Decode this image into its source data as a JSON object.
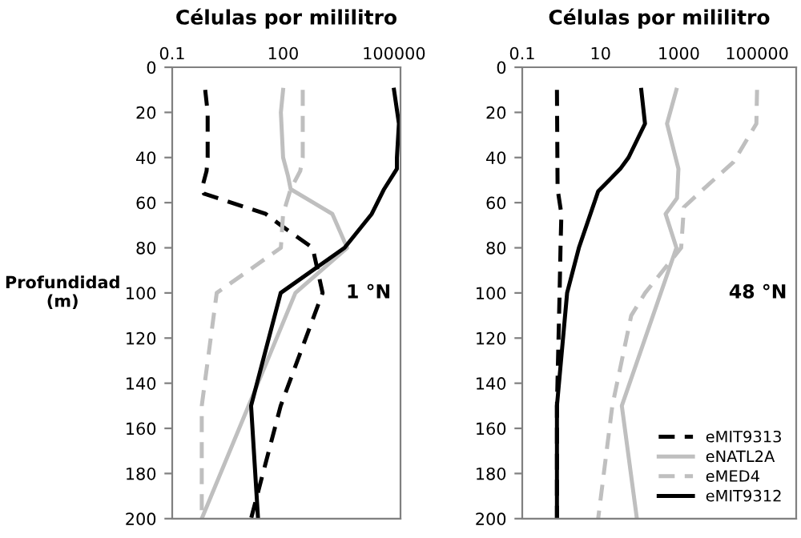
{
  "chart_data": [
    {
      "type": "line",
      "orientation": "horizontal",
      "xlabel": "Células por mililitro",
      "ylabel": "Profundidad\n(m)",
      "log": "x",
      "xlim": [
        0.1,
        150000
      ],
      "xticks": [
        0.1,
        100,
        100000
      ],
      "ylim": [
        200,
        0
      ],
      "yticks": [
        0,
        20,
        40,
        60,
        80,
        100,
        120,
        140,
        160,
        180,
        200
      ],
      "grid": false,
      "annotations": [
        "1 °N"
      ],
      "series": [
        {
          "color": "#000000",
          "line_style": "dashed",
          "values": [
            0.78,
            0.91,
            0.91,
            0.85,
            0.63,
            0.72,
            34,
            86,
            630,
            1170,
            86,
            13.6
          ],
          "x": [
            10,
            20,
            40,
            46,
            54,
            56,
            65,
            70,
            80,
            100,
            150,
            200
          ]
        },
        {
          "color": "#bfbfbf",
          "line_style": "solid",
          "values": [
            100,
            87,
            100,
            135,
            160,
            2150,
            5400,
            215,
            0.63
          ],
          "x": [
            10,
            20,
            40,
            48,
            54,
            65,
            80,
            100,
            200
          ]
        },
        {
          "color": "#bfbfbf",
          "line_style": "dashed",
          "values": [
            340,
            340,
            340,
            290,
            160,
            100,
            87,
            1.6,
            0.63,
            0.63
          ],
          "x": [
            10,
            20,
            40,
            46,
            54,
            65,
            80,
            100,
            150,
            200
          ]
        },
        {
          "color": "#000000",
          "line_style": "solid",
          "values": [
            100000,
            136000,
            120000,
            120000,
            54000,
            25000,
            4600,
            86,
            13.6,
            21
          ],
          "x": [
            10,
            25,
            40,
            45,
            54,
            65,
            80,
            100,
            150,
            200
          ]
        }
      ]
    },
    {
      "type": "line",
      "orientation": "horizontal",
      "xlabel": "Células por mililitro",
      "log": "x",
      "xlim": [
        0.1,
        1000000
      ],
      "xticks": [
        0.1,
        10,
        1000,
        100000
      ],
      "ylim": [
        200,
        0
      ],
      "yticks": [
        0,
        20,
        40,
        60,
        80,
        100,
        120,
        140,
        160,
        180,
        200
      ],
      "grid": false,
      "legend": "bottom right",
      "annotations": [
        "48 °N"
      ],
      "series": [
        {
          "name": "eMIT9313",
          "color": "#000000",
          "line_style": "dashed",
          "values": [
            0.77,
            0.8,
            1.0,
            0.95,
            0.9,
            0.77,
            0.77
          ],
          "x": [
            10,
            54,
            65,
            80,
            100,
            150,
            200
          ]
        },
        {
          "name": "eNATL2A",
          "color": "#bfbfbf",
          "line_style": "solid",
          "values": [
            870,
            500,
            980,
            900,
            460,
            870,
            35,
            85
          ],
          "x": [
            10,
            25,
            45,
            58,
            65,
            80,
            150,
            200
          ]
        },
        {
          "name": "eMED4",
          "color": "#bfbfbf",
          "line_style": "dashed",
          "values": [
            100000,
            96000,
            25000,
            5700,
            1350,
            1150,
            138,
            61,
            20,
            8.7
          ],
          "x": [
            10,
            25,
            42,
            52,
            62,
            80,
            100,
            110,
            150,
            200
          ]
        },
        {
          "name": "eMIT9312",
          "color": "#000000",
          "line_style": "solid",
          "values": [
            110,
            137,
            52,
            32,
            8.7,
            2.8,
            1.4,
            0.77,
            0.77
          ],
          "x": [
            10,
            25,
            40,
            45,
            55,
            80,
            100,
            150,
            200
          ]
        }
      ]
    }
  ]
}
